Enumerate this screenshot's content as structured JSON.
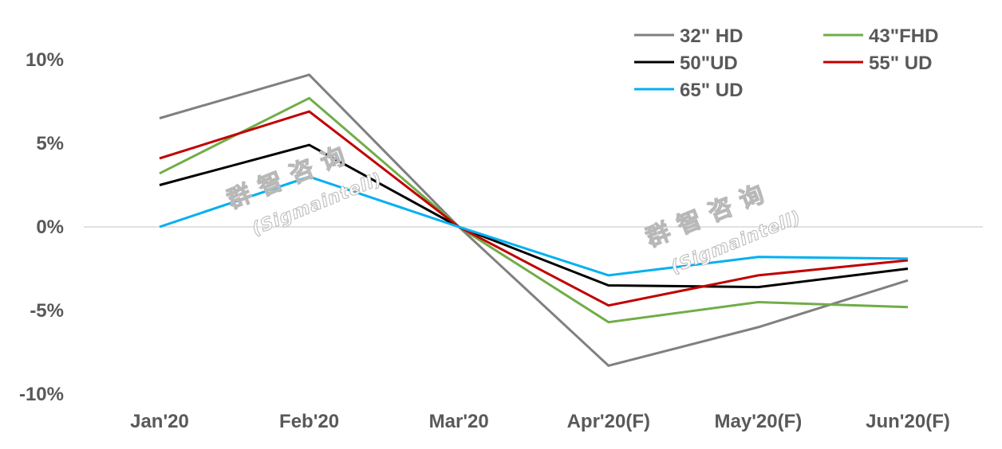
{
  "chart_data": {
    "type": "line",
    "categories": [
      "Jan'20",
      "Feb'20",
      "Mar'20",
      "Apr'20(F)",
      "May'20(F)",
      "Jun'20(F)"
    ],
    "ylim": [
      -10,
      10
    ],
    "yticks": [
      "10%",
      "5%",
      "0%",
      "-5%",
      "-10%"
    ],
    "grid": false,
    "legend_position": "top-right",
    "series": [
      {
        "name": "32\" HD",
        "color": "#808080",
        "values": [
          6.5,
          9.1,
          0,
          -8.3,
          -6.0,
          -3.2
        ]
      },
      {
        "name": "43\"FHD",
        "color": "#70AD47",
        "values": [
          3.2,
          7.7,
          0,
          -5.7,
          -4.5,
          -4.8
        ]
      },
      {
        "name": "50\"UD",
        "color": "#000000",
        "values": [
          2.5,
          4.9,
          0,
          -3.5,
          -3.6,
          -2.5
        ]
      },
      {
        "name": "55\" UD",
        "color": "#C00000",
        "values": [
          4.1,
          6.9,
          0,
          -4.7,
          -2.9,
          -2.0
        ]
      },
      {
        "name": "65\" UD",
        "color": "#00B0F0",
        "values": [
          0.0,
          3.0,
          0,
          -2.9,
          -1.8,
          -1.9
        ]
      }
    ]
  },
  "watermark": {
    "title": "群智咨询",
    "subtitle": "(Sigmaintell)"
  }
}
